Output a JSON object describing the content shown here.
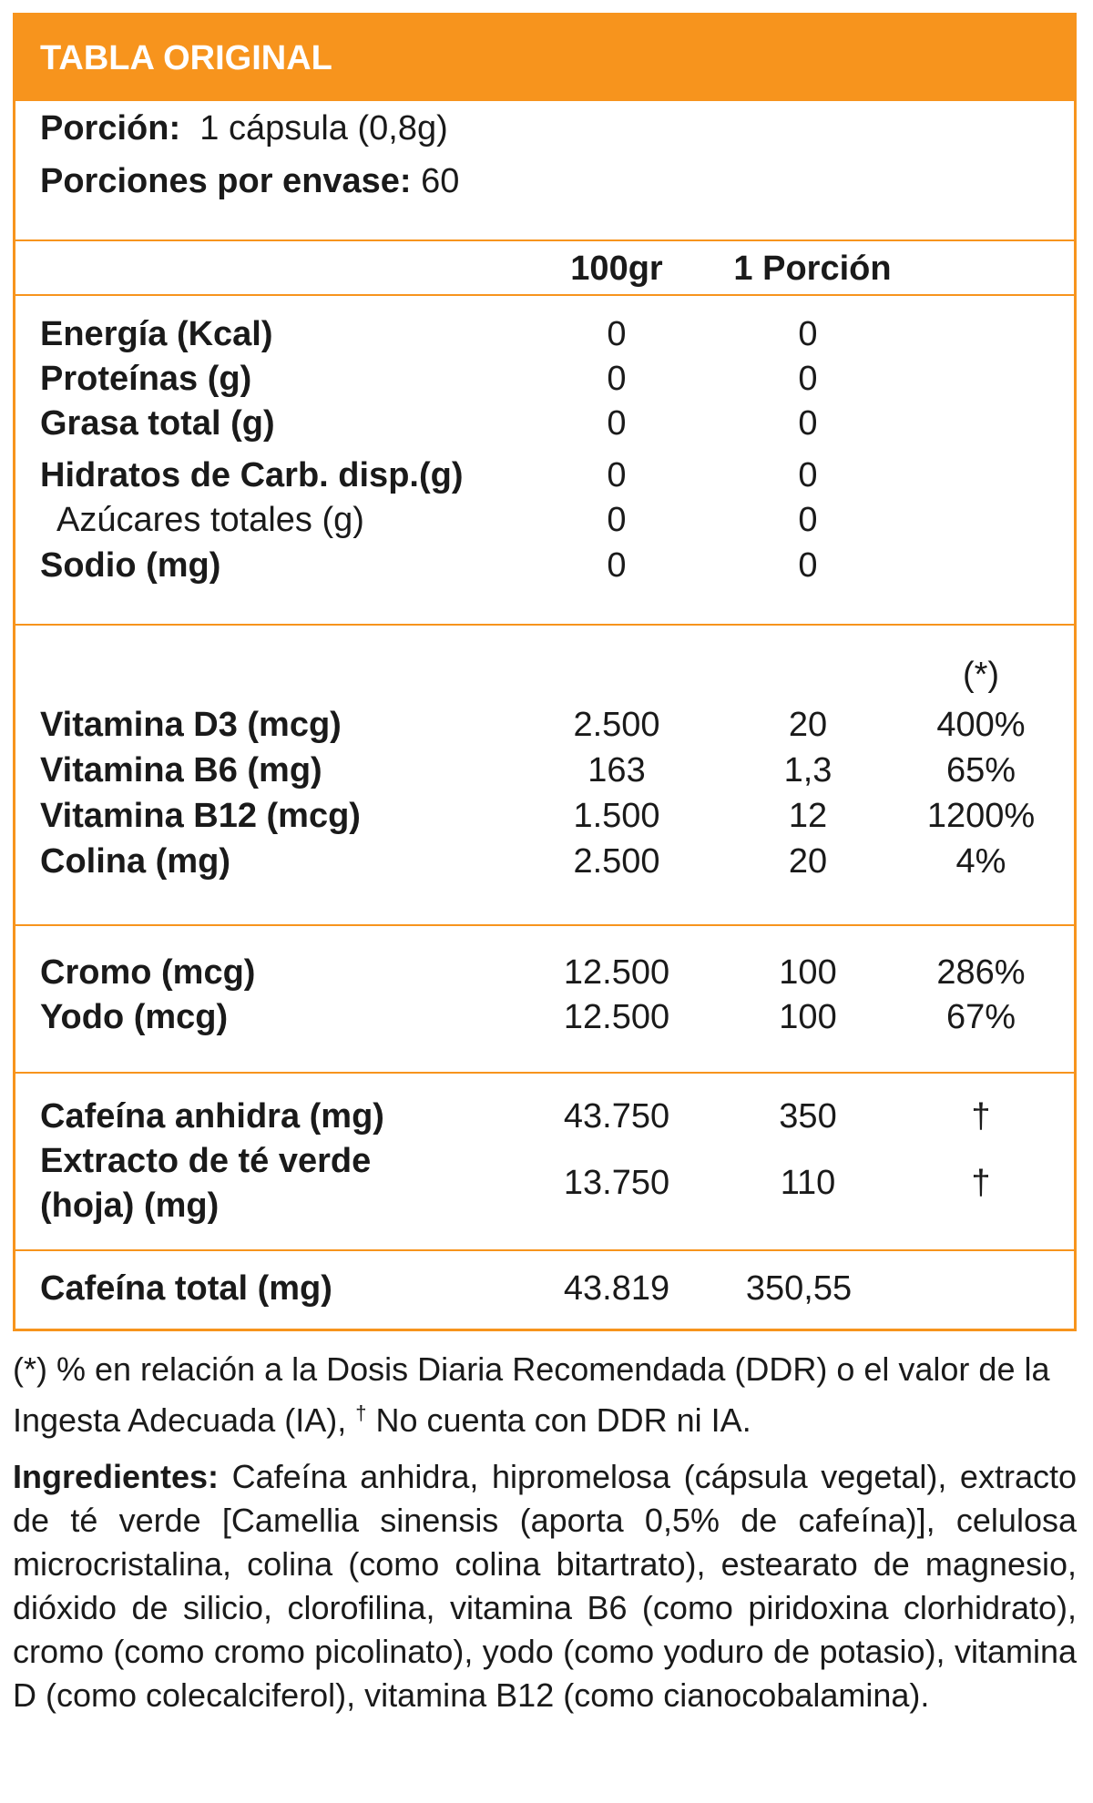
{
  "title": "TABLA ORIGINAL",
  "serving": {
    "portion_label": "Porción:",
    "portion_value": "1 cápsula (0,8g)",
    "servings_label": "Porciones por envase:",
    "servings_value": "60"
  },
  "columns": {
    "per100": "100gr",
    "per_portion": "1 Porción"
  },
  "nutrients": [
    {
      "name": "Energía (Kcal)",
      "per100": "0",
      "portion": "0"
    },
    {
      "name": "Proteínas (g)",
      "per100": "0",
      "portion": "0"
    },
    {
      "name": "Grasa total (g)",
      "per100": "0",
      "portion": "0"
    },
    {
      "name": "Hidratos de Carb. disp.(g)",
      "per100": "0",
      "portion": "0"
    },
    {
      "name": "Azúcares totales (g)",
      "per100": "0",
      "portion": "0"
    },
    {
      "name": "Sodio (mg)",
      "per100": "0",
      "portion": "0"
    }
  ],
  "ddr_header": "(*)",
  "vitamins": [
    {
      "name": "Vitamina D3 (mcg)",
      "per100": "2.500",
      "portion": "20",
      "ddr": "400%"
    },
    {
      "name": "Vitamina B6 (mg)",
      "per100": "163",
      "portion": "1,3",
      "ddr": "65%"
    },
    {
      "name": "Vitamina B12 (mcg)",
      "per100": "1.500",
      "portion": "12",
      "ddr": "1200%"
    },
    {
      "name": "Colina (mg)",
      "per100": "2.500",
      "portion": "20",
      "ddr": "4%"
    }
  ],
  "minerals": [
    {
      "name": "Cromo (mcg)",
      "per100": "12.500",
      "portion": "100",
      "ddr": "286%"
    },
    {
      "name": "Yodo (mcg)",
      "per100": "12.500",
      "portion": "100",
      "ddr": "67%"
    }
  ],
  "actives": [
    {
      "name": "Cafeína anhidra (mg)",
      "per100": "43.750",
      "portion": "350",
      "ddr": "†"
    },
    {
      "name_line1": "Extracto de té verde",
      "name_line2": "(hoja) (mg)",
      "per100": "13.750",
      "portion": "110",
      "ddr": "†"
    }
  ],
  "total": {
    "name": "Cafeína total (mg)",
    "per100": "43.819",
    "portion": "350,55"
  },
  "footnote": {
    "line1": "(*) % en relación a la Dosis Diaria Recomendada (DDR) o el valor de la",
    "line2_a": "Ingesta Adecuada (IA), ",
    "dagger": "†",
    "line2_b": " No cuenta con DDR ni IA."
  },
  "ingredients": {
    "label": "Ingredientes:",
    "text": " Cafeína anhidra, hipromelosa (cápsula vegetal), extracto de té verde [Camellia sinensis (aporta 0,5% de cafeína)], celulosa microcristalina, colina (como colina bitartrato), estearato de magnesio, dióxido de silicio, clorofilina, vitamina B6 (como piridoxina clorhidrato), cromo (como cromo picolinato), yodo (como yoduro de potasio), vitamina D (como colecalciferol), vitamina B12 (como cianocobalamina)."
  }
}
